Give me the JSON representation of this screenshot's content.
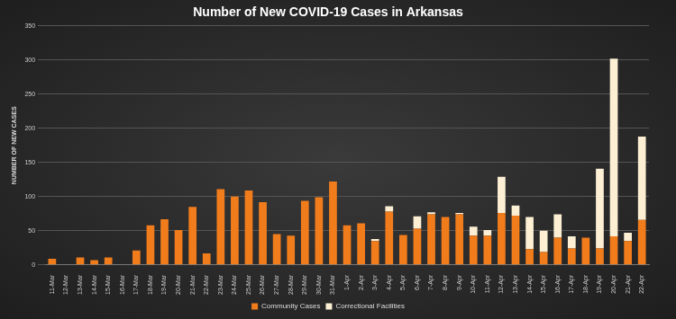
{
  "chart_data": {
    "type": "bar",
    "title": "Number of New COVID-19 Cases in Arkansas",
    "y_label": "NUMBER OF NEW CASES",
    "categories": [
      "11-Mar",
      "12-Mar",
      "13-Mar",
      "14-Mar",
      "15-Mar",
      "16-Mar",
      "17-Mar",
      "18-Mar",
      "19-Mar",
      "20-Mar",
      "21-Mar",
      "22-Mar",
      "23-Mar",
      "24-Mar",
      "25-Mar",
      "26-Mar",
      "27-Mar",
      "28-Mar",
      "29-Mar",
      "30-Mar",
      "31-Mar",
      "1-Apr",
      "2-Apr",
      "3-Apr",
      "4-Apr",
      "5-Apr",
      "6-Apr",
      "7-Apr",
      "8-Apr",
      "9-Apr",
      "10-Apr",
      "11-Apr",
      "12-Apr",
      "13-Apr",
      "14-Apr",
      "15-Apr",
      "16-Apr",
      "17-Apr",
      "18-Apr",
      "19-Apr",
      "20-Apr",
      "21-Apr",
      "22-Apr"
    ],
    "series": [
      {
        "name": "Community Cases",
        "color": "#f07c1c",
        "values": [
          9,
          0,
          11,
          7,
          11,
          0,
          21,
          58,
          67,
          51,
          85,
          17,
          111,
          100,
          109,
          92,
          45,
          43,
          94,
          99,
          122,
          58,
          61,
          35,
          78,
          44,
          53,
          74,
          70,
          74,
          43,
          43,
          76,
          72,
          23,
          19,
          40,
          24,
          40,
          24,
          42,
          35,
          66
        ]
      },
      {
        "name": "Correctional Facilities",
        "color": "#fcefd4",
        "values": [
          0,
          0,
          0,
          0,
          0,
          0,
          0,
          0,
          0,
          0,
          0,
          0,
          0,
          0,
          0,
          0,
          0,
          0,
          0,
          0,
          0,
          0,
          0,
          3,
          8,
          0,
          18,
          3,
          0,
          2,
          13,
          8,
          53,
          15,
          47,
          31,
          34,
          18,
          0,
          117,
          260,
          12,
          122
        ]
      }
    ],
    "stacked": true,
    "ylim": [
      0,
      350
    ],
    "yticks": [
      0,
      50,
      100,
      150,
      200,
      250,
      300,
      350
    ],
    "grid": true,
    "legend": "bottom"
  }
}
